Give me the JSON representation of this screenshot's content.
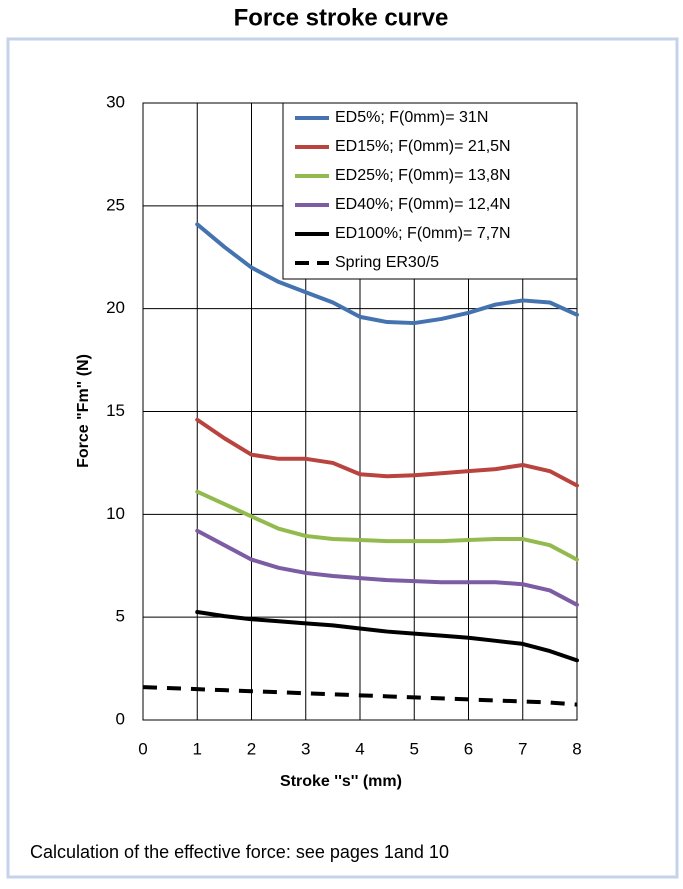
{
  "chart_data": {
    "type": "line",
    "title": "Force stroke curve",
    "xlabel": "Stroke ''s'' (mm)",
    "ylabel": "Force \"Fm\" (N)",
    "footnote": "Calculation of the effective force: see pages 1and 10",
    "x": [
      0,
      0.5,
      1,
      1.5,
      2,
      2.5,
      3,
      3.5,
      4,
      4.5,
      5,
      5.5,
      6,
      6.5,
      7,
      7.5,
      8
    ],
    "xlim": [
      0,
      8
    ],
    "xticks": [
      0,
      1,
      2,
      3,
      4,
      5,
      6,
      7,
      8
    ],
    "ylim": [
      0,
      30
    ],
    "yticks": [
      0,
      5,
      10,
      15,
      20,
      25,
      30
    ],
    "grid": true,
    "legend": "upper right",
    "series": [
      {
        "name": "ED5%; F(0mm)= 31N",
        "color": "#4473b0",
        "dash": false,
        "values": [
          null,
          null,
          24.1,
          23.0,
          22.0,
          21.3,
          20.8,
          20.3,
          19.6,
          19.35,
          19.3,
          19.5,
          19.8,
          20.2,
          20.4,
          20.3,
          19.7
        ]
      },
      {
        "name": "ED15%; F(0mm)= 21,5N",
        "color": "#b9443f",
        "dash": false,
        "values": [
          null,
          null,
          14.6,
          13.7,
          12.9,
          12.7,
          12.7,
          12.5,
          11.95,
          11.85,
          11.9,
          12.0,
          12.1,
          12.2,
          12.4,
          12.1,
          11.4
        ]
      },
      {
        "name": "ED25%; F(0mm)= 13,8N",
        "color": "#93ba4f",
        "dash": false,
        "values": [
          null,
          null,
          11.1,
          10.5,
          9.9,
          9.3,
          8.95,
          8.8,
          8.75,
          8.7,
          8.7,
          8.7,
          8.75,
          8.8,
          8.8,
          8.5,
          7.8
        ]
      },
      {
        "name": "ED40%; F(0mm)= 12,4N",
        "color": "#7c5ca3",
        "dash": false,
        "values": [
          null,
          null,
          9.2,
          8.5,
          7.8,
          7.4,
          7.15,
          7.0,
          6.9,
          6.8,
          6.75,
          6.7,
          6.7,
          6.7,
          6.6,
          6.3,
          5.6
        ]
      },
      {
        "name": "ED100%; F(0mm)= 7,7N",
        "color": "#000000",
        "dash": false,
        "values": [
          null,
          null,
          5.25,
          5.05,
          4.9,
          4.8,
          4.7,
          4.6,
          4.45,
          4.3,
          4.2,
          4.1,
          4.0,
          3.85,
          3.7,
          3.35,
          2.9
        ]
      },
      {
        "name": "Spring ER30/5",
        "color": "#000000",
        "dash": true,
        "values": [
          1.6,
          1.55,
          1.5,
          1.45,
          1.4,
          1.35,
          1.3,
          1.25,
          1.2,
          1.15,
          1.1,
          1.05,
          1.0,
          0.95,
          0.9,
          0.85,
          0.75
        ]
      }
    ]
  }
}
